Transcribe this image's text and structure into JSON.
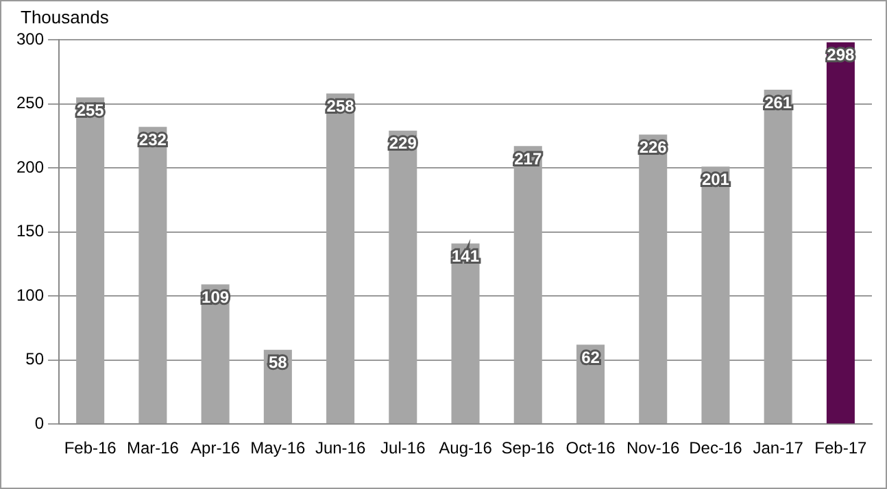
{
  "chart_data": {
    "type": "bar",
    "ylabel": "Thousands",
    "categories": [
      "Feb-16",
      "Mar-16",
      "Apr-16",
      "May-16",
      "Jun-16",
      "Jul-16",
      "Aug-16",
      "Sep-16",
      "Oct-16",
      "Nov-16",
      "Dec-16",
      "Jan-17",
      "Feb-17"
    ],
    "values": [
      255,
      232,
      109,
      58,
      258,
      229,
      141,
      217,
      62,
      226,
      201,
      261,
      298
    ],
    "colors": [
      "#a6a6a6",
      "#a6a6a6",
      "#a6a6a6",
      "#a6a6a6",
      "#a6a6a6",
      "#a6a6a6",
      "#a6a6a6",
      "#a6a6a6",
      "#a6a6a6",
      "#a6a6a6",
      "#a6a6a6",
      "#a6a6a6",
      "#5b0a4f"
    ],
    "ylim": [
      0,
      300
    ],
    "yticks": [
      0,
      50,
      100,
      150,
      200,
      250,
      300
    ],
    "grid": "y",
    "data_labels": true,
    "legend": false
  }
}
